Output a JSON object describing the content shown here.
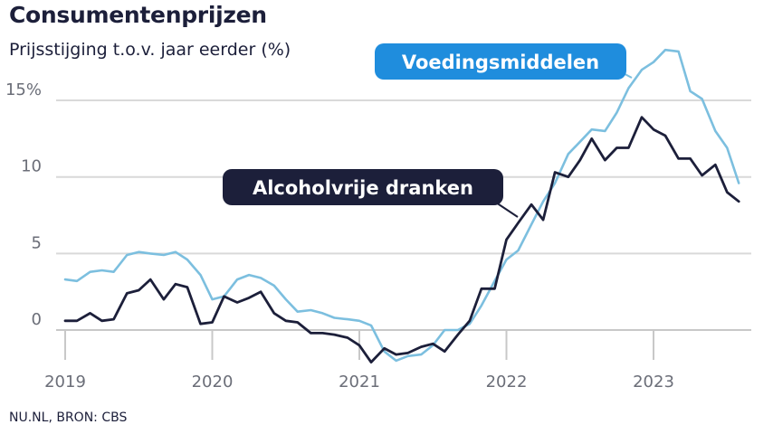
{
  "header": {
    "title": "Consumentenprijzen",
    "subtitle": "Prijsstijging t.o.v. jaar eerder (%)"
  },
  "footer": {
    "source": "NU.NL, BRON: CBS"
  },
  "colors": {
    "food": "#7cbfdf",
    "drinks": "#1c1f3a",
    "food_label_bg": "#1f8ddd",
    "grid": "#d9d9d9",
    "axis_text": "#6b6e78"
  },
  "chart_data": {
    "type": "line",
    "title": "Consumentenprijzen",
    "subtitle": "Prijsstijging t.o.v. jaar eerder (%)",
    "xlabel": "",
    "ylabel": "",
    "x_ticks": [
      "2019",
      "2020",
      "2021",
      "2022",
      "2023"
    ],
    "y_ticks": [
      "15%",
      "10",
      "5",
      "0"
    ],
    "y_tick_values": [
      15,
      10,
      5,
      0
    ],
    "xlim": [
      2019.0,
      2023.67
    ],
    "ylim": [
      -2.5,
      17.5
    ],
    "grid": true,
    "series": [
      {
        "name": "Voedingsmiddelen",
        "points": [
          [
            2019.0,
            3.3
          ],
          [
            2019.08,
            3.2
          ],
          [
            2019.17,
            3.8
          ],
          [
            2019.25,
            3.9
          ],
          [
            2019.33,
            3.8
          ],
          [
            2019.42,
            4.9
          ],
          [
            2019.5,
            5.1
          ],
          [
            2019.58,
            5.0
          ],
          [
            2019.67,
            4.9
          ],
          [
            2019.75,
            5.1
          ],
          [
            2019.83,
            4.6
          ],
          [
            2019.92,
            3.6
          ],
          [
            2020.0,
            2.0
          ],
          [
            2020.08,
            2.2
          ],
          [
            2020.17,
            3.3
          ],
          [
            2020.25,
            3.6
          ],
          [
            2020.33,
            3.4
          ],
          [
            2020.42,
            2.9
          ],
          [
            2020.5,
            2.0
          ],
          [
            2020.58,
            1.2
          ],
          [
            2020.67,
            1.3
          ],
          [
            2020.75,
            1.1
          ],
          [
            2020.83,
            0.8
          ],
          [
            2020.92,
            0.7
          ],
          [
            2021.0,
            0.6
          ],
          [
            2021.08,
            0.3
          ],
          [
            2021.17,
            -1.4
          ],
          [
            2021.25,
            -2.0
          ],
          [
            2021.33,
            -1.7
          ],
          [
            2021.42,
            -1.6
          ],
          [
            2021.5,
            -1.0
          ],
          [
            2021.58,
            0.0
          ],
          [
            2021.67,
            0.0
          ],
          [
            2021.75,
            0.4
          ],
          [
            2021.83,
            1.6
          ],
          [
            2021.92,
            3.2
          ],
          [
            2022.0,
            4.6
          ],
          [
            2022.08,
            5.2
          ],
          [
            2022.17,
            6.9
          ],
          [
            2022.25,
            8.4
          ],
          [
            2022.33,
            9.6
          ],
          [
            2022.42,
            11.5
          ],
          [
            2022.5,
            12.3
          ],
          [
            2022.58,
            13.1
          ],
          [
            2022.67,
            13.0
          ],
          [
            2022.75,
            14.2
          ],
          [
            2022.83,
            15.8
          ],
          [
            2022.92,
            17.0
          ],
          [
            2023.0,
            17.5
          ],
          [
            2023.08,
            18.3
          ],
          [
            2023.17,
            18.2
          ],
          [
            2023.25,
            15.6
          ],
          [
            2023.33,
            15.1
          ],
          [
            2023.42,
            13.0
          ],
          [
            2023.5,
            11.9
          ],
          [
            2023.58,
            9.6
          ]
        ]
      },
      {
        "name": "Alcoholvrije dranken",
        "points": [
          [
            2019.0,
            0.6
          ],
          [
            2019.08,
            0.6
          ],
          [
            2019.17,
            1.1
          ],
          [
            2019.25,
            0.6
          ],
          [
            2019.33,
            0.7
          ],
          [
            2019.42,
            2.4
          ],
          [
            2019.5,
            2.6
          ],
          [
            2019.58,
            3.3
          ],
          [
            2019.67,
            2.0
          ],
          [
            2019.75,
            3.0
          ],
          [
            2019.83,
            2.8
          ],
          [
            2019.92,
            0.4
          ],
          [
            2020.0,
            0.5
          ],
          [
            2020.08,
            2.2
          ],
          [
            2020.17,
            1.8
          ],
          [
            2020.25,
            2.1
          ],
          [
            2020.33,
            2.5
          ],
          [
            2020.42,
            1.1
          ],
          [
            2020.5,
            0.6
          ],
          [
            2020.58,
            0.5
          ],
          [
            2020.67,
            -0.2
          ],
          [
            2020.75,
            -0.2
          ],
          [
            2020.83,
            -0.3
          ],
          [
            2020.92,
            -0.5
          ],
          [
            2021.0,
            -1.0
          ],
          [
            2021.08,
            -2.1
          ],
          [
            2021.17,
            -1.2
          ],
          [
            2021.25,
            -1.6
          ],
          [
            2021.33,
            -1.5
          ],
          [
            2021.42,
            -1.1
          ],
          [
            2021.5,
            -0.9
          ],
          [
            2021.58,
            -1.4
          ],
          [
            2021.67,
            -0.3
          ],
          [
            2021.75,
            0.6
          ],
          [
            2021.83,
            2.7
          ],
          [
            2021.92,
            2.7
          ],
          [
            2022.0,
            5.9
          ],
          [
            2022.08,
            7.0
          ],
          [
            2022.17,
            8.2
          ],
          [
            2022.25,
            7.2
          ],
          [
            2022.33,
            10.3
          ],
          [
            2022.42,
            10.0
          ],
          [
            2022.5,
            11.1
          ],
          [
            2022.58,
            12.5
          ],
          [
            2022.67,
            11.1
          ],
          [
            2022.75,
            11.9
          ],
          [
            2022.83,
            11.9
          ],
          [
            2022.92,
            13.9
          ],
          [
            2023.0,
            13.1
          ],
          [
            2023.08,
            12.7
          ],
          [
            2023.17,
            11.2
          ],
          [
            2023.25,
            11.2
          ],
          [
            2023.33,
            10.1
          ],
          [
            2023.42,
            10.8
          ],
          [
            2023.5,
            9.0
          ],
          [
            2023.58,
            8.4
          ]
        ]
      }
    ],
    "annotations": {
      "food_label": "Voedingsmiddelen",
      "drinks_label": "Alcoholvrije dranken"
    }
  }
}
